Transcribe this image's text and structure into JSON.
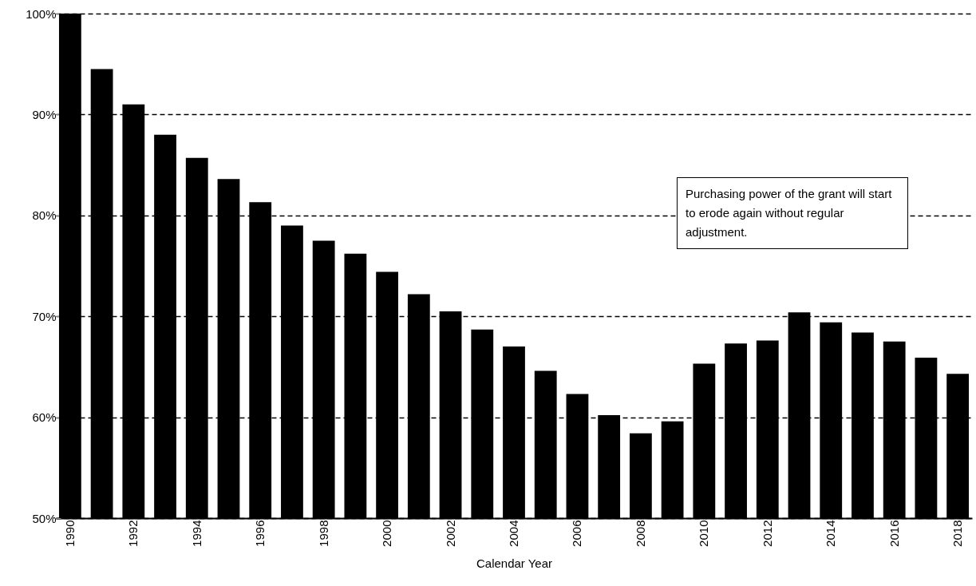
{
  "chart_data": {
    "type": "bar",
    "xlabel": "Calendar Year",
    "categories": [
      "1990",
      null,
      "1992",
      null,
      "1994",
      null,
      "1996",
      null,
      "1998",
      null,
      "2000",
      null,
      "2002",
      null,
      "2004",
      null,
      "2006",
      null,
      "2008",
      null,
      "2010",
      null,
      "2012",
      null,
      "2014",
      null,
      "2016",
      null,
      "2018"
    ],
    "values": [
      100,
      94.5,
      91.0,
      88.0,
      85.7,
      83.6,
      81.3,
      79.0,
      77.5,
      76.2,
      74.4,
      72.2,
      70.5,
      68.7,
      67.0,
      64.6,
      62.3,
      60.2,
      58.4,
      59.6,
      65.3,
      67.3,
      67.6,
      70.4,
      69.4,
      68.4,
      67.5,
      65.9,
      64.3
    ],
    "color": "#000000",
    "ylim": [
      50,
      100
    ],
    "yticks": [
      {
        "value": 50,
        "label": "50%"
      },
      {
        "value": 60,
        "label": "60%"
      },
      {
        "value": 70,
        "label": "70%"
      },
      {
        "value": 80,
        "label": "80%"
      },
      {
        "value": 90,
        "label": "90%"
      },
      {
        "value": 100,
        "label": "100%"
      }
    ],
    "grid": "y",
    "annotations": [
      "Purchasing power of the grant will start to erode again without regular adjustment."
    ]
  }
}
